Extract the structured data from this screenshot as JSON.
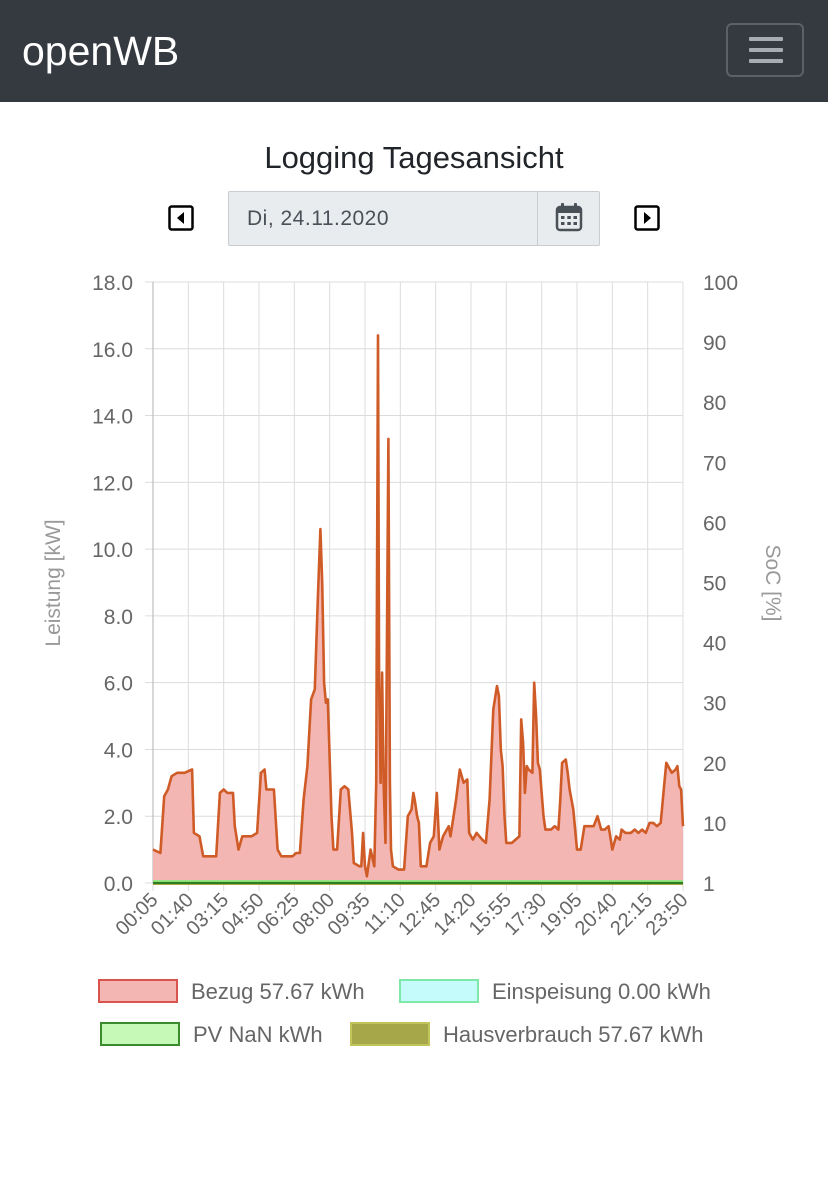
{
  "navbar": {
    "brand": "openWB"
  },
  "page": {
    "title": "Logging Tagesansicht"
  },
  "date_picker": {
    "value": "Di, 24.11.2020"
  },
  "icons": {
    "menu": "hamburger-icon",
    "prev": "caret-left-square-icon",
    "next": "caret-right-square-icon",
    "calendar": "calendar-icon"
  },
  "colors": {
    "navbar_bg": "#343a40",
    "bezug_fill": "#f4b6b3",
    "bezug_line": "#cf5b27",
    "einspeisung": "#b6f7fb",
    "pv": "#c6f8b8",
    "hausverbrauch": "#a6a749"
  },
  "legend": [
    {
      "label": "Bezug 57.67 kWh",
      "fill": "#f4b6b3",
      "border": "#d9534f"
    },
    {
      "label": "Einspeisung 0.00 kWh",
      "fill": "#c6fbfb",
      "border": "#7ee8a8"
    },
    {
      "label": "PV NaN kWh",
      "fill": "#c6f8b8",
      "border": "#3a8a2e"
    },
    {
      "label": "Hausverbrauch 57.67 kWh",
      "fill": "#a6a749",
      "border": "#c2c35a"
    }
  ],
  "chart_data": {
    "type": "area",
    "ylabel_left": "Leistung [kW]",
    "ylabel_right": "SoC [%]",
    "ylim_left": [
      0,
      18
    ],
    "yticks_left": [
      "0.0",
      "2.0",
      "4.0",
      "6.0",
      "8.0",
      "10.0",
      "12.0",
      "14.0",
      "16.0",
      "18.0"
    ],
    "yticks_right": [
      "1",
      "10",
      "20",
      "30",
      "40",
      "50",
      "60",
      "70",
      "80",
      "90",
      "100"
    ],
    "xticks": [
      "00:05",
      "01:40",
      "03:15",
      "04:50",
      "06:25",
      "08:00",
      "09:35",
      "11:10",
      "12:45",
      "14:20",
      "15:55",
      "17:30",
      "19:05",
      "20:40",
      "22:15",
      "23:50"
    ],
    "grid": true,
    "x_start_min": 5,
    "x_end_min": 1430,
    "series": [
      {
        "name": "Bezug",
        "points": [
          [
            5,
            1.0
          ],
          [
            25,
            0.9
          ],
          [
            35,
            2.6
          ],
          [
            45,
            2.8
          ],
          [
            55,
            3.2
          ],
          [
            70,
            3.3
          ],
          [
            90,
            3.3
          ],
          [
            110,
            3.4
          ],
          [
            115,
            1.5
          ],
          [
            130,
            1.4
          ],
          [
            140,
            0.8
          ],
          [
            165,
            0.8
          ],
          [
            175,
            0.8
          ],
          [
            185,
            2.7
          ],
          [
            195,
            2.8
          ],
          [
            205,
            2.7
          ],
          [
            220,
            2.7
          ],
          [
            225,
            1.7
          ],
          [
            235,
            1.0
          ],
          [
            245,
            1.4
          ],
          [
            270,
            1.4
          ],
          [
            285,
            1.5
          ],
          [
            295,
            3.3
          ],
          [
            305,
            3.4
          ],
          [
            310,
            2.8
          ],
          [
            330,
            2.8
          ],
          [
            340,
            1.0
          ],
          [
            350,
            0.8
          ],
          [
            380,
            0.8
          ],
          [
            390,
            0.9
          ],
          [
            400,
            0.9
          ],
          [
            410,
            2.5
          ],
          [
            420,
            3.5
          ],
          [
            430,
            5.5
          ],
          [
            440,
            5.8
          ],
          [
            448,
            8.5
          ],
          [
            455,
            10.6
          ],
          [
            460,
            9.0
          ],
          [
            465,
            6.0
          ],
          [
            470,
            5.4
          ],
          [
            475,
            5.5
          ],
          [
            485,
            2.0
          ],
          [
            490,
            1.0
          ],
          [
            500,
            1.0
          ],
          [
            510,
            2.8
          ],
          [
            520,
            2.9
          ],
          [
            530,
            2.8
          ],
          [
            540,
            1.5
          ],
          [
            545,
            0.6
          ],
          [
            560,
            0.5
          ],
          [
            565,
            0.5
          ],
          [
            570,
            1.5
          ],
          [
            575,
            0.5
          ],
          [
            580,
            0.2
          ],
          [
            590,
            1.0
          ],
          [
            600,
            0.5
          ],
          [
            605,
            3.0
          ],
          [
            610,
            16.4
          ],
          [
            613,
            6.0
          ],
          [
            617,
            3.0
          ],
          [
            621,
            6.3
          ],
          [
            625,
            3.0
          ],
          [
            630,
            1.2
          ],
          [
            638,
            13.3
          ],
          [
            642,
            3.0
          ],
          [
            645,
            1.0
          ],
          [
            650,
            0.5
          ],
          [
            665,
            0.4
          ],
          [
            680,
            0.4
          ],
          [
            690,
            2.0
          ],
          [
            700,
            2.2
          ],
          [
            705,
            2.7
          ],
          [
            710,
            2.4
          ],
          [
            715,
            2.0
          ],
          [
            720,
            1.8
          ],
          [
            725,
            0.5
          ],
          [
            740,
            0.5
          ],
          [
            750,
            1.2
          ],
          [
            760,
            1.4
          ],
          [
            768,
            2.7
          ],
          [
            775,
            1.0
          ],
          [
            785,
            1.4
          ],
          [
            795,
            1.6
          ],
          [
            800,
            1.7
          ],
          [
            805,
            1.4
          ],
          [
            820,
            2.5
          ],
          [
            830,
            3.4
          ],
          [
            840,
            3.0
          ],
          [
            850,
            3.1
          ],
          [
            855,
            1.5
          ],
          [
            865,
            1.3
          ],
          [
            875,
            1.5
          ],
          [
            890,
            1.3
          ],
          [
            900,
            1.2
          ],
          [
            910,
            2.5
          ],
          [
            920,
            5.2
          ],
          [
            930,
            5.9
          ],
          [
            935,
            5.6
          ],
          [
            940,
            4.0
          ],
          [
            945,
            3.5
          ],
          [
            950,
            2.0
          ],
          [
            955,
            1.2
          ],
          [
            970,
            1.2
          ],
          [
            980,
            1.3
          ],
          [
            990,
            1.4
          ],
          [
            995,
            4.9
          ],
          [
            1000,
            4.2
          ],
          [
            1005,
            2.7
          ],
          [
            1010,
            3.5
          ],
          [
            1015,
            3.4
          ],
          [
            1025,
            3.3
          ],
          [
            1030,
            6.0
          ],
          [
            1035,
            5.0
          ],
          [
            1040,
            3.6
          ],
          [
            1045,
            3.4
          ],
          [
            1055,
            2.0
          ],
          [
            1060,
            1.6
          ],
          [
            1075,
            1.6
          ],
          [
            1085,
            1.7
          ],
          [
            1095,
            1.6
          ],
          [
            1100,
            2.5
          ],
          [
            1105,
            3.6
          ],
          [
            1115,
            3.7
          ],
          [
            1120,
            3.3
          ],
          [
            1125,
            2.8
          ],
          [
            1135,
            2.2
          ],
          [
            1145,
            1.0
          ],
          [
            1155,
            1.0
          ],
          [
            1165,
            1.7
          ],
          [
            1175,
            1.7
          ],
          [
            1190,
            1.7
          ],
          [
            1200,
            2.0
          ],
          [
            1210,
            1.6
          ],
          [
            1220,
            1.6
          ],
          [
            1230,
            1.7
          ],
          [
            1240,
            1.0
          ],
          [
            1250,
            1.4
          ],
          [
            1260,
            1.3
          ],
          [
            1265,
            1.6
          ],
          [
            1275,
            1.5
          ],
          [
            1290,
            1.5
          ],
          [
            1300,
            1.6
          ],
          [
            1310,
            1.5
          ],
          [
            1320,
            1.6
          ],
          [
            1330,
            1.5
          ],
          [
            1340,
            1.8
          ],
          [
            1350,
            1.8
          ],
          [
            1360,
            1.7
          ],
          [
            1370,
            1.8
          ],
          [
            1380,
            3.0
          ],
          [
            1385,
            3.6
          ],
          [
            1390,
            3.5
          ],
          [
            1400,
            3.3
          ],
          [
            1410,
            3.4
          ],
          [
            1415,
            3.5
          ],
          [
            1420,
            2.9
          ],
          [
            1425,
            2.8
          ],
          [
            1430,
            1.7
          ]
        ]
      },
      {
        "name": "Einspeisung",
        "constant": 0
      },
      {
        "name": "PV",
        "constant": 0
      },
      {
        "name": "Hausverbrauch",
        "constant": 0
      }
    ]
  }
}
